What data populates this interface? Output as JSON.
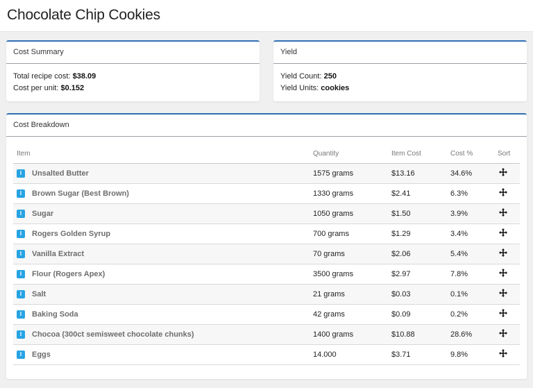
{
  "page": {
    "title": "Chocolate Chip Cookies"
  },
  "cost_summary": {
    "header": "Cost Summary",
    "total_label": "Total recipe cost:",
    "total_value": "$38.09",
    "per_unit_label": "Cost per unit:",
    "per_unit_value": "$0.152"
  },
  "yield": {
    "header": "Yield",
    "count_label": "Yield Count:",
    "count_value": "250",
    "units_label": "Yield Units:",
    "units_value": "cookies"
  },
  "breakdown": {
    "header": "Cost Breakdown",
    "columns": {
      "item": "Item",
      "quantity": "Quantity",
      "item_cost": "Item Cost",
      "cost_pct": "Cost %",
      "sort": "Sort"
    },
    "badge_letter": "I",
    "rows": [
      {
        "name": "Unsalted Butter",
        "quantity": "1575 grams",
        "cost": "$13.16",
        "pct": "34.6%"
      },
      {
        "name": "Brown Sugar (Best Brown)",
        "quantity": "1330 grams",
        "cost": "$2.41",
        "pct": "6.3%"
      },
      {
        "name": "Sugar",
        "quantity": "1050 grams",
        "cost": "$1.50",
        "pct": "3.9%"
      },
      {
        "name": "Rogers Golden Syrup",
        "quantity": "700 grams",
        "cost": "$1.29",
        "pct": "3.4%"
      },
      {
        "name": "Vanilla Extract",
        "quantity": "70 grams",
        "cost": "$2.06",
        "pct": "5.4%"
      },
      {
        "name": "Flour (Rogers Apex)",
        "quantity": "3500 grams",
        "cost": "$2.97",
        "pct": "7.8%"
      },
      {
        "name": "Salt",
        "quantity": "21 grams",
        "cost": "$0.03",
        "pct": "0.1%"
      },
      {
        "name": "Baking Soda",
        "quantity": "42 grams",
        "cost": "$0.09",
        "pct": "0.2%"
      },
      {
        "name": "Chocoa (300ct semisweet chocolate chunks)",
        "quantity": "1400 grams",
        "cost": "$10.88",
        "pct": "28.6%"
      },
      {
        "name": "Eggs",
        "quantity": "14.000",
        "cost": "$3.71",
        "pct": "9.8%"
      }
    ]
  },
  "colors": {
    "accent": "#2f6fb4",
    "badge": "#26a3e3"
  },
  "icons": {
    "item_badge": "ingredient-badge-icon",
    "sort": "move-arrows-icon"
  }
}
